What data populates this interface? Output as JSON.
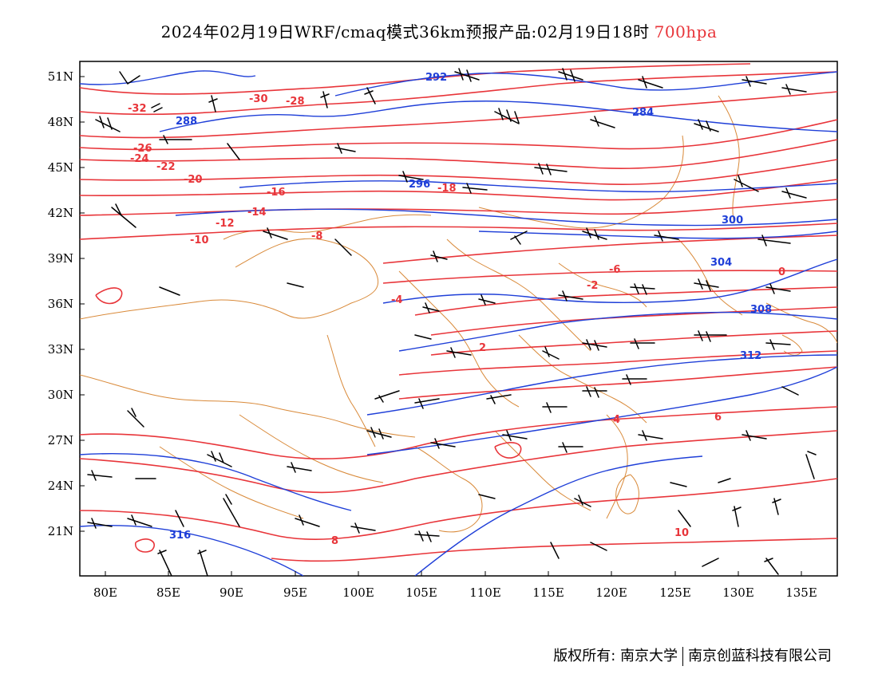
{
  "header": {
    "title": "2024年02月19日WRF/cmaq模式36km预报产品:02月19日18时",
    "level": "700hpa",
    "level_color": "#e8353a"
  },
  "map": {
    "lon_labels": [
      "80E",
      "85E",
      "90E",
      "95E",
      "100E",
      "105E",
      "110E",
      "115E",
      "120E",
      "125E",
      "130E",
      "135E"
    ],
    "lat_labels": [
      "51N",
      "48N",
      "45N",
      "42N",
      "39N",
      "36N",
      "33N",
      "30N",
      "27N",
      "24N",
      "21N"
    ],
    "colors": {
      "temperature": "#e8353a",
      "height": "#1f3fd8",
      "boundary": "#d98a3a",
      "wind": "#000000"
    },
    "temperature_labels": [
      "-32",
      "-30",
      "-28",
      "-26",
      "-24",
      "-22",
      "-20",
      "-18",
      "-16",
      "-14",
      "-12",
      "-10",
      "-8",
      "-6",
      "-4",
      "-2",
      "0",
      "2",
      "4",
      "6",
      "8",
      "10"
    ],
    "height_labels": [
      "284",
      "288",
      "292",
      "296",
      "300",
      "304",
      "308",
      "312",
      "316"
    ]
  },
  "footer": {
    "copyright": "版权所有: 南京大学",
    "company": "南京创蓝科技有限公司"
  }
}
